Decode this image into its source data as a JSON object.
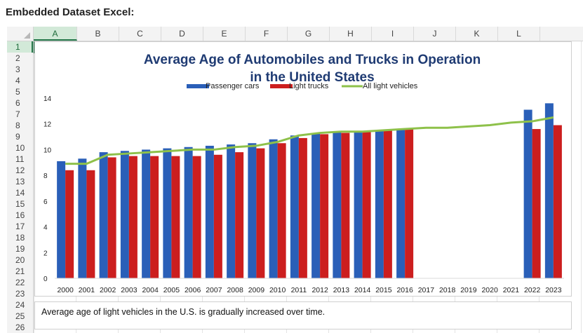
{
  "page": {
    "title": "Embedded Dataset Excel:"
  },
  "sheet": {
    "columns": [
      "A",
      "B",
      "C",
      "D",
      "E",
      "F",
      "G",
      "H",
      "I",
      "J",
      "K",
      "L"
    ],
    "rows": [
      "1",
      "2",
      "3",
      "4",
      "5",
      "6",
      "7",
      "8",
      "9",
      "10",
      "11",
      "12",
      "13",
      "14",
      "15",
      "16",
      "17",
      "18",
      "19",
      "20",
      "21",
      "22",
      "23",
      "24",
      "25",
      "26"
    ],
    "selected_column": "A",
    "selected_row": "1"
  },
  "caption": "Average age of light vehicles in the U.S. is gradually increased over time.",
  "colors": {
    "passenger": "#2a5fb8",
    "light_trucks": "#cc1e1e",
    "all_light": "#8ec14a",
    "title": "#1f3b73",
    "excel_green": "#217346"
  },
  "chart_data": {
    "type": "bar",
    "title": "Average Age of Automobiles and Trucks in Operation in the United States",
    "title_lines": [
      "Average Age of Automobiles and Trucks in Operation",
      "in the United States"
    ],
    "categories": [
      "2000",
      "2001",
      "2002",
      "2003",
      "2004",
      "2005",
      "2006",
      "2007",
      "2008",
      "2009",
      "2010",
      "2011",
      "2012",
      "2013",
      "2014",
      "2015",
      "2016",
      "2017",
      "2018",
      "2019",
      "2020",
      "2021",
      "2022",
      "2023"
    ],
    "ylim": [
      0,
      14
    ],
    "yticks": [
      0,
      2,
      4,
      6,
      8,
      10,
      12,
      14
    ],
    "grid": false,
    "legend_placement": "top-center",
    "xlabel": "",
    "ylabel": "",
    "series": [
      {
        "name": "Passenger cars",
        "type": "bar",
        "values": [
          9.1,
          9.3,
          9.8,
          9.9,
          10.0,
          10.1,
          10.2,
          10.3,
          10.4,
          10.5,
          10.8,
          11.1,
          11.3,
          11.4,
          11.4,
          11.5,
          11.6,
          null,
          null,
          null,
          null,
          null,
          13.1,
          13.6
        ]
      },
      {
        "name": "Light trucks",
        "type": "bar",
        "values": [
          8.4,
          8.4,
          9.4,
          9.5,
          9.5,
          9.5,
          9.5,
          9.6,
          9.8,
          10.1,
          10.5,
          10.9,
          11.2,
          11.3,
          11.4,
          11.5,
          11.6,
          null,
          null,
          null,
          null,
          null,
          11.6,
          11.9
        ]
      },
      {
        "name": "All light vehicles",
        "type": "line",
        "values": [
          8.9,
          8.9,
          9.6,
          9.7,
          9.8,
          9.9,
          10.0,
          10.0,
          10.2,
          10.3,
          10.6,
          11.1,
          11.3,
          11.4,
          11.4,
          11.5,
          11.6,
          11.7,
          11.7,
          11.8,
          11.9,
          12.1,
          12.2,
          12.5
        ]
      }
    ]
  }
}
